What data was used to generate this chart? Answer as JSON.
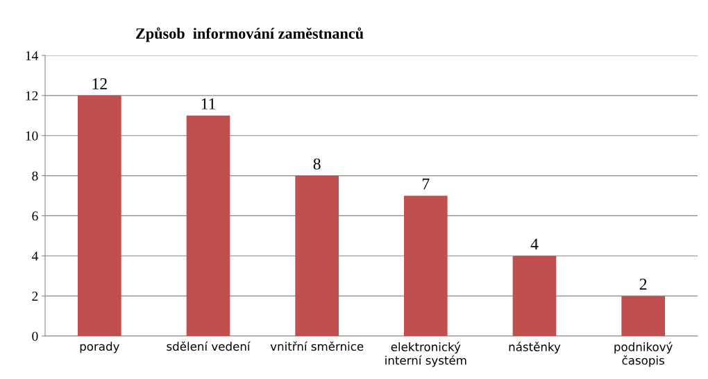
{
  "chart_data": {
    "type": "bar",
    "title": "Způsob  informování zaměstnanců",
    "categories": [
      "porady",
      "sdělení vedení",
      "vnitřní směrnice",
      "elektronický\ninterní systém",
      "nástěnky",
      "podnikový\nčasopis"
    ],
    "values": [
      12,
      11,
      8,
      7,
      4,
      2
    ],
    "color": "#c0504d",
    "ylim": [
      0,
      14
    ],
    "yticks": [
      0,
      2,
      4,
      6,
      8,
      10,
      12,
      14
    ],
    "grid": "y",
    "data_labels": true
  }
}
